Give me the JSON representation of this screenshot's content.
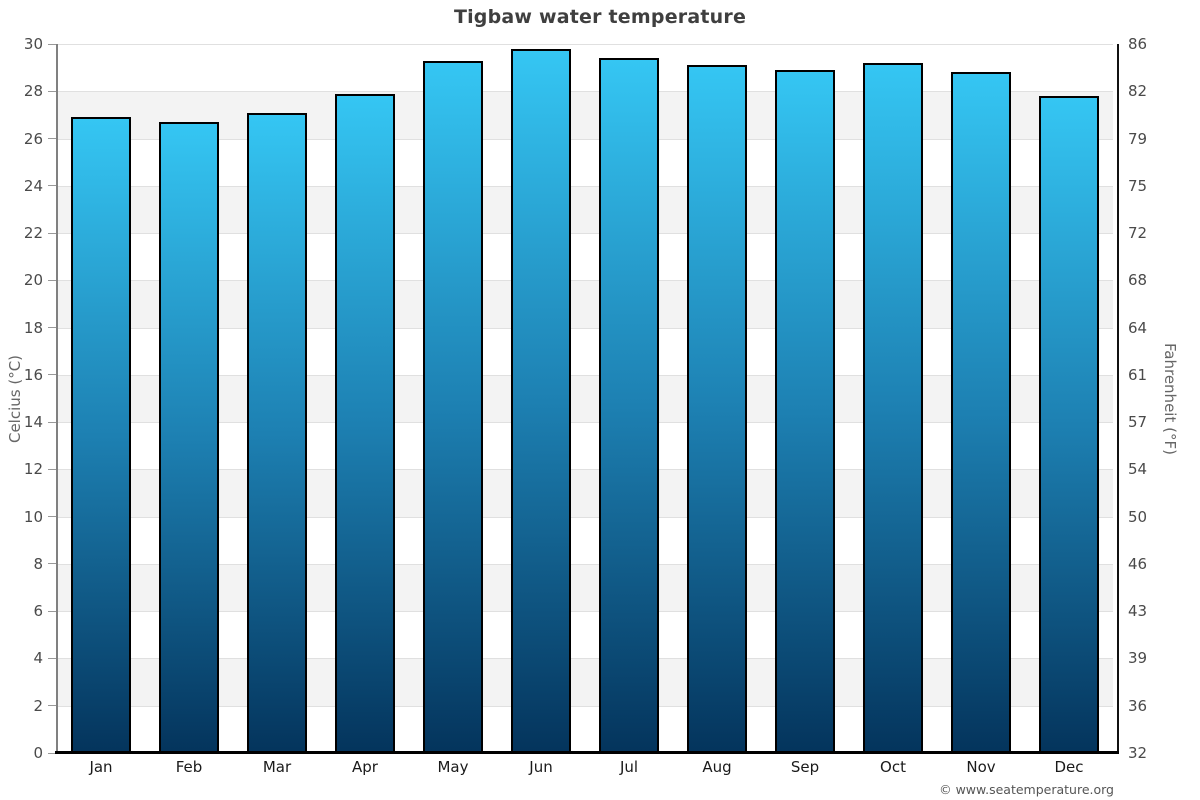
{
  "title": "Tigbaw water temperature",
  "footer": {
    "credit": "© www.seatemperature.org"
  },
  "chart_data": {
    "type": "bar",
    "title": "Tigbaw water temperature",
    "categories": [
      "Jan",
      "Feb",
      "Mar",
      "Apr",
      "May",
      "Jun",
      "Jul",
      "Aug",
      "Sep",
      "Oct",
      "Nov",
      "Dec"
    ],
    "series": [
      {
        "name": "Water temperature (°C)",
        "values": [
          26.9,
          26.7,
          27.1,
          27.9,
          29.3,
          29.8,
          29.4,
          29.1,
          28.9,
          29.2,
          28.8,
          27.8
        ]
      }
    ],
    "ylabel_left": "Celcius (°C)",
    "ylabel_right": "Fahrenheit (°F)",
    "xlabel": "",
    "ylim_celsius": [
      0,
      30
    ],
    "yticks": [
      {
        "celsius": "30",
        "fahrenheit": "86"
      },
      {
        "celsius": "28",
        "fahrenheit": "82"
      },
      {
        "celsius": "26",
        "fahrenheit": "79"
      },
      {
        "celsius": "24",
        "fahrenheit": "75"
      },
      {
        "celsius": "22",
        "fahrenheit": "72"
      },
      {
        "celsius": "20",
        "fahrenheit": "68"
      },
      {
        "celsius": "18",
        "fahrenheit": "64"
      },
      {
        "celsius": "16",
        "fahrenheit": "61"
      },
      {
        "celsius": "14",
        "fahrenheit": "57"
      },
      {
        "celsius": "12",
        "fahrenheit": "54"
      },
      {
        "celsius": "10",
        "fahrenheit": "50"
      },
      {
        "celsius": "8",
        "fahrenheit": "46"
      },
      {
        "celsius": "6",
        "fahrenheit": "43"
      },
      {
        "celsius": "4",
        "fahrenheit": "39"
      },
      {
        "celsius": "2",
        "fahrenheit": "36"
      },
      {
        "celsius": "0",
        "fahrenheit": "32"
      }
    ],
    "grid": "alternating horizontal bands every 2°C, light gray / white, thin gridlines",
    "legend": "none",
    "colors": {
      "bar_gradient_top": "#35c6f3",
      "bar_gradient_mid": "#1d80b2",
      "bar_gradient_bottom": "#04345c",
      "bar_border": "#000000",
      "band_gray": "#f3f3f3",
      "grid_line": "#e0e0e0",
      "left_axis_line": "#808080",
      "right_axis_line": "#111111",
      "baseline": "#000000",
      "title_text": "#3f3f3f",
      "tick_text": "#4a4a4a",
      "month_text": "#1a1a1a",
      "axis_title_text": "#666666",
      "footer_text": "#555555"
    }
  }
}
